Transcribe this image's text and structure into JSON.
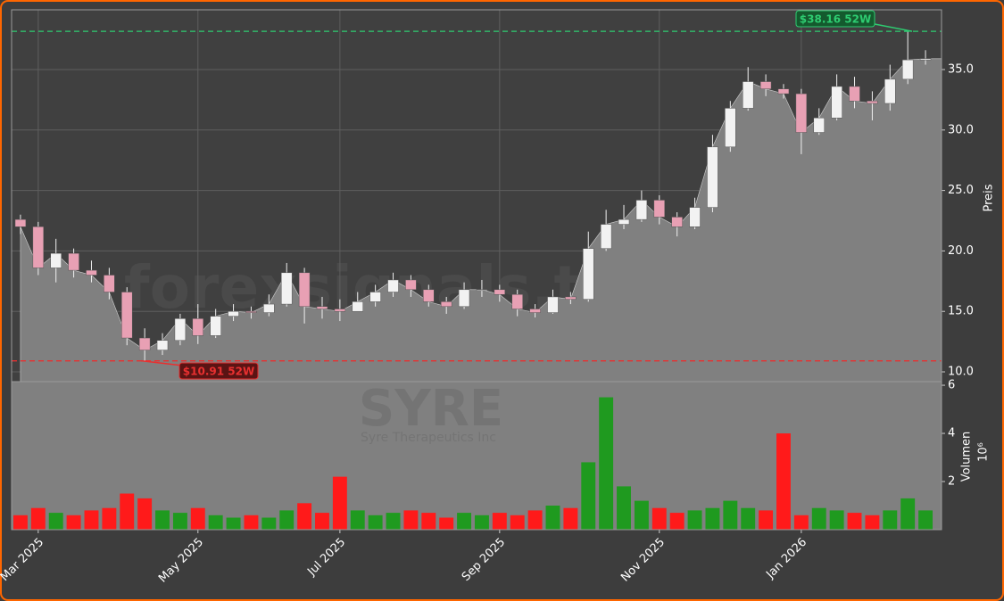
{
  "chart_data": [
    {
      "type": "candlestick",
      "categories": [
        null,
        "Mar 2025",
        null,
        null,
        null,
        null,
        null,
        null,
        null,
        null,
        "May 2025",
        null,
        null,
        null,
        null,
        null,
        null,
        null,
        "Jul 2025",
        null,
        null,
        null,
        null,
        null,
        null,
        null,
        null,
        "Sep 2025",
        null,
        null,
        null,
        null,
        null,
        null,
        null,
        null,
        "Nov 2025",
        null,
        null,
        null,
        null,
        null,
        null,
        null,
        "Jan 2026",
        null,
        null,
        null,
        null,
        null,
        null,
        null
      ],
      "open": [
        22.6,
        22.0,
        18.6,
        19.8,
        18.4,
        18.0,
        16.6,
        12.8,
        11.8,
        12.6,
        14.4,
        13.0,
        14.6,
        15.0,
        14.9,
        15.6,
        18.2,
        15.4,
        15.2,
        15.0,
        15.8,
        16.6,
        17.6,
        16.8,
        15.8,
        15.4,
        16.8,
        16.8,
        16.4,
        15.2,
        14.9,
        16.2,
        16.0,
        20.2,
        22.2,
        22.6,
        24.2,
        22.8,
        22.0,
        23.6,
        28.6,
        31.8,
        34.0,
        33.4,
        33.0,
        29.8,
        31.0,
        33.6,
        32.4,
        32.2,
        34.2,
        35.8
      ],
      "high": [
        23.0,
        22.4,
        21.0,
        20.2,
        19.2,
        18.6,
        17.0,
        13.6,
        13.2,
        14.8,
        15.6,
        15.2,
        15.6,
        15.4,
        16.4,
        19.0,
        18.6,
        16.2,
        16.0,
        16.6,
        17.2,
        18.2,
        18.0,
        17.2,
        16.2,
        17.4,
        17.6,
        17.2,
        16.8,
        15.6,
        16.8,
        16.6,
        21.6,
        23.4,
        23.8,
        25.0,
        24.6,
        23.2,
        24.4,
        29.6,
        32.4,
        35.2,
        34.6,
        33.8,
        33.4,
        31.8,
        34.6,
        34.4,
        33.2,
        35.4,
        38.16,
        36.6
      ],
      "low": [
        21.4,
        18.0,
        17.4,
        17.8,
        17.4,
        16.0,
        12.2,
        10.91,
        11.4,
        12.2,
        12.3,
        12.8,
        14.2,
        14.4,
        14.6,
        15.4,
        14.0,
        14.4,
        14.2,
        15.0,
        15.4,
        16.2,
        16.2,
        15.4,
        14.8,
        15.2,
        16.2,
        15.8,
        14.6,
        14.5,
        14.8,
        15.6,
        15.8,
        20.0,
        21.8,
        22.4,
        22.2,
        21.2,
        21.8,
        23.2,
        28.2,
        31.6,
        32.8,
        32.6,
        28.0,
        29.6,
        30.8,
        31.8,
        30.8,
        31.6,
        33.8,
        35.4
      ],
      "close": [
        22.0,
        18.6,
        19.8,
        18.4,
        18.0,
        16.6,
        12.8,
        11.8,
        12.6,
        14.4,
        13.0,
        14.6,
        15.0,
        14.9,
        15.6,
        18.2,
        15.4,
        15.2,
        15.0,
        15.8,
        16.6,
        17.6,
        16.8,
        15.8,
        15.4,
        16.8,
        16.8,
        16.4,
        15.2,
        14.9,
        16.2,
        16.0,
        20.2,
        22.2,
        22.6,
        24.2,
        22.8,
        22.0,
        23.6,
        28.6,
        31.8,
        34.0,
        33.4,
        33.0,
        29.8,
        31.0,
        33.6,
        32.4,
        32.2,
        34.2,
        35.8,
        35.9
      ],
      "up_color": "#f2f2f2",
      "down_color": "#e8a0b4",
      "area_color": "#808080",
      "ylim": [
        9.19,
        39.94
      ],
      "yticks": [
        {
          "value": 10,
          "label": "10.0"
        },
        {
          "value": 15,
          "label": "15.0"
        },
        {
          "value": 20,
          "label": "20.0"
        },
        {
          "value": 25,
          "label": "25.0"
        },
        {
          "value": 30,
          "label": "30.0"
        },
        {
          "value": 35,
          "label": "35.0"
        }
      ],
      "ylabel": "Preis",
      "grid": true,
      "hlines": [
        {
          "value": 38.16,
          "label": "$38.16 52W",
          "color": "#2ecc71"
        },
        {
          "value": 10.91,
          "label": "$10.91 52W",
          "color": "#e83030"
        }
      ],
      "watermark": "forexsignals.trade"
    },
    {
      "type": "bar",
      "values": [
        0.6,
        0.9,
        0.7,
        0.6,
        0.8,
        0.9,
        1.5,
        1.3,
        0.8,
        0.7,
        0.9,
        0.6,
        0.5,
        0.6,
        0.5,
        0.8,
        1.1,
        0.7,
        2.2,
        0.8,
        0.6,
        0.7,
        0.8,
        0.7,
        0.5,
        0.7,
        0.6,
        0.7,
        0.6,
        0.8,
        1.0,
        0.9,
        2.8,
        5.5,
        1.8,
        1.2,
        0.9,
        0.7,
        0.8,
        0.9,
        1.2,
        0.9,
        0.8,
        4.0,
        0.6,
        0.9,
        0.8,
        0.7,
        0.6,
        0.8,
        1.3,
        0.8
      ],
      "up_color": "#1f9a1f",
      "down_color": "#ff1a1a",
      "ylim": [
        0,
        6.15
      ],
      "yticks": [
        2,
        4,
        6
      ],
      "ylabel": "Volumen",
      "multiplier": "10⁶",
      "symbol": "SYRE",
      "company": "Syre Therapeutics Inc"
    }
  ]
}
